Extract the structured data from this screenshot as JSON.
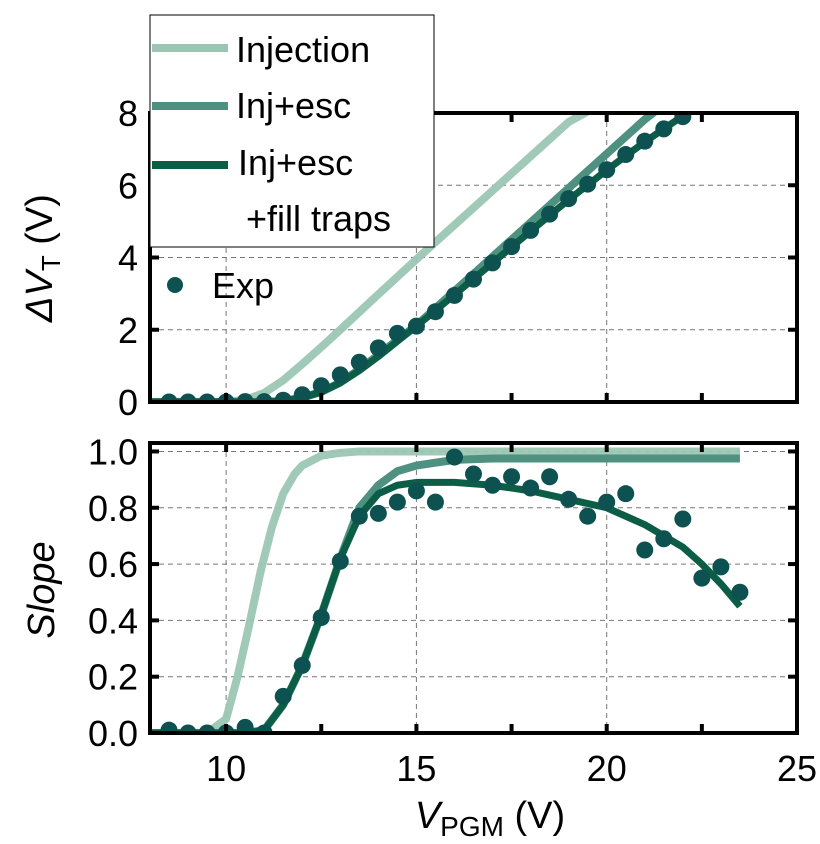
{
  "chart_data": [
    {
      "panel": "top",
      "type": "line",
      "ylabel": "ΔV",
      "ylabel_sub": "T",
      "ylabel_unit": "(V)",
      "xlim": [
        8,
        25
      ],
      "ylim": [
        0,
        8
      ],
      "yticks": [
        "0",
        "2",
        "4",
        "6",
        "8"
      ],
      "ytick_values": [
        0,
        2,
        4,
        6,
        8
      ],
      "grid": true,
      "legend": {
        "placement": "top-left",
        "entries": [
          {
            "label": "Injection",
            "series": "Injection"
          },
          {
            "label": "Inj+esc",
            "series": "Inj+esc"
          },
          {
            "label": "Inj+esc",
            "label2": "+fill traps",
            "series": "Inj+esc+fill traps"
          },
          {
            "label": "Exp",
            "series": "Exp"
          }
        ]
      },
      "series": [
        {
          "name": "Injection",
          "kind": "line",
          "color": "#9cc6b4",
          "x": [
            8,
            9,
            10,
            10.5,
            11,
            11.5,
            12,
            12.5,
            13,
            14,
            15,
            16,
            17,
            18,
            19,
            19.6
          ],
          "y": [
            0,
            0,
            0,
            0.06,
            0.25,
            0.6,
            1.05,
            1.52,
            2.0,
            2.98,
            3.95,
            4.9,
            5.85,
            6.8,
            7.75,
            8.1
          ]
        },
        {
          "name": "Inj+esc",
          "kind": "line",
          "color": "#4f9180",
          "x": [
            8,
            10,
            11,
            11.5,
            12,
            12.5,
            13,
            13.5,
            14,
            14.5,
            15,
            16,
            17,
            18,
            19,
            20,
            21,
            21.4
          ],
          "y": [
            0,
            0,
            0,
            0.03,
            0.12,
            0.28,
            0.54,
            0.9,
            1.3,
            1.72,
            2.12,
            3.07,
            4.02,
            4.97,
            5.92,
            6.87,
            7.82,
            8.15
          ]
        },
        {
          "name": "Inj+esc+fill traps",
          "kind": "line",
          "color": "#0b5e45",
          "x": [
            8,
            10,
            11,
            11.5,
            12,
            12.5,
            13,
            13.5,
            14,
            14.5,
            15,
            16,
            17,
            18,
            19,
            20,
            21,
            22,
            22.3
          ],
          "y": [
            0,
            0,
            0,
            0.03,
            0.12,
            0.28,
            0.53,
            0.87,
            1.26,
            1.68,
            2.1,
            2.97,
            3.85,
            4.73,
            5.6,
            6.42,
            7.2,
            7.92,
            8.1
          ]
        },
        {
          "name": "Exp",
          "kind": "scatter",
          "color": "#0d5250",
          "x": [
            8.5,
            9,
            9.5,
            10,
            10.5,
            11,
            11.5,
            12,
            12.5,
            13,
            13.5,
            14,
            14.5,
            15,
            15.5,
            16,
            16.5,
            17,
            17.5,
            18,
            18.5,
            19,
            19.5,
            20,
            20.5,
            21,
            21.5,
            22
          ],
          "y": [
            0,
            0,
            0,
            0,
            0.01,
            0.01,
            0.05,
            0.2,
            0.45,
            0.75,
            1.1,
            1.5,
            1.9,
            2.1,
            2.5,
            2.95,
            3.4,
            3.85,
            4.3,
            4.75,
            5.2,
            5.63,
            6.03,
            6.43,
            6.85,
            7.22,
            7.56,
            7.9
          ]
        }
      ]
    },
    {
      "panel": "bottom",
      "type": "line",
      "ylabel": "Slope",
      "xlabel": "V",
      "xlabel_sub": "PGM",
      "xlabel_unit": "(V)",
      "xlim": [
        8,
        25
      ],
      "ylim": [
        0,
        1.03
      ],
      "xticks": [
        "10",
        "15",
        "20",
        "25"
      ],
      "xtick_values": [
        10,
        15,
        20,
        25
      ],
      "yticks": [
        "0.0",
        "0.2",
        "0.4",
        "0.6",
        "0.8",
        "1.0"
      ],
      "ytick_values": [
        0,
        0.2,
        0.4,
        0.6,
        0.8,
        1.0
      ],
      "grid": true,
      "series": [
        {
          "name": "Injection",
          "kind": "line",
          "color": "#9cc6b4",
          "x": [
            8,
            9.5,
            10,
            10.3,
            10.6,
            10.9,
            11.2,
            11.5,
            11.8,
            12,
            12.5,
            13,
            13.5,
            14,
            23.5
          ],
          "y": [
            0,
            0,
            0.05,
            0.2,
            0.38,
            0.57,
            0.73,
            0.85,
            0.92,
            0.95,
            0.985,
            0.995,
            1.0,
            1.0,
            1.0
          ]
        },
        {
          "name": "Inj+esc",
          "kind": "line",
          "color": "#4f9180",
          "x": [
            8,
            10.5,
            11,
            11.5,
            12,
            12.5,
            13,
            13.5,
            14,
            14.5,
            15,
            15.5,
            16,
            17,
            23.5
          ],
          "y": [
            0,
            0,
            0.01,
            0.1,
            0.24,
            0.42,
            0.62,
            0.8,
            0.88,
            0.93,
            0.95,
            0.96,
            0.97,
            0.975,
            0.975
          ]
        },
        {
          "name": "Inj+esc+fill traps",
          "kind": "line",
          "color": "#0b5e45",
          "x": [
            8,
            10.5,
            11,
            11.5,
            12,
            12.5,
            13,
            13.5,
            14,
            14.5,
            15,
            16,
            17,
            18,
            19,
            20,
            21,
            22,
            22.5,
            23,
            23.5
          ],
          "y": [
            0,
            0,
            0.01,
            0.1,
            0.24,
            0.42,
            0.62,
            0.77,
            0.85,
            0.88,
            0.89,
            0.89,
            0.88,
            0.86,
            0.83,
            0.8,
            0.74,
            0.66,
            0.6,
            0.53,
            0.45
          ]
        },
        {
          "name": "Exp",
          "kind": "scatter",
          "color": "#0d5250",
          "x": [
            8.5,
            9,
            9.5,
            10,
            10.5,
            11,
            11.5,
            12,
            12.5,
            13,
            13.5,
            14,
            14.5,
            15,
            15.5,
            16,
            16.5,
            17,
            17.5,
            18,
            18.5,
            19,
            19.5,
            20,
            20.5,
            21,
            21.5,
            22,
            22.5,
            23,
            23.5
          ],
          "y": [
            0.01,
            0.0,
            0.0,
            0.0,
            0.02,
            0.0,
            0.13,
            0.24,
            0.41,
            0.61,
            0.77,
            0.78,
            0.82,
            0.86,
            0.82,
            0.98,
            0.92,
            0.88,
            0.91,
            0.87,
            0.91,
            0.83,
            0.77,
            0.82,
            0.85,
            0.65,
            0.69,
            0.76,
            0.55,
            0.59,
            0.5
          ]
        }
      ]
    }
  ]
}
